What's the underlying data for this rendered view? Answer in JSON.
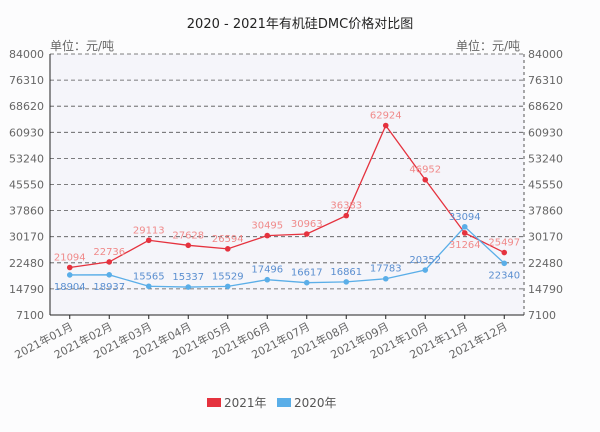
{
  "chart_data": {
    "type": "line",
    "title": "2020 - 2021年有机硅DMC价格对比图",
    "ylabel_left": "单位：元/吨",
    "ylabel_right": "单位：元/吨",
    "categories": [
      "2021年01月",
      "2021年02月",
      "2021年03月",
      "2021年04月",
      "2021年05月",
      "2021年06月",
      "2021年07月",
      "2021年08月",
      "2021年09月",
      "2021年10月",
      "2021年11月",
      "2021年12月"
    ],
    "yticks": [
      84000,
      76310,
      68620,
      60930,
      53240,
      45550,
      37860,
      30170,
      22480,
      14790,
      7100
    ],
    "ylim": [
      7100,
      84000
    ],
    "grid": true,
    "legend_position": "bottom",
    "series": [
      {
        "name": "2021年",
        "color": "#e5323e",
        "label_color": "#f08a8a",
        "values": [
          21094,
          22736,
          29113,
          27628,
          26594,
          30495,
          30963,
          36383,
          62924,
          46952,
          31264,
          25497
        ]
      },
      {
        "name": "2020年",
        "color": "#5aaee8",
        "label_color": "#5b8fd0",
        "values": [
          18904,
          18937,
          15565,
          15337,
          15529,
          17496,
          16617,
          16861,
          17783,
          20352,
          33094,
          22340
        ]
      }
    ]
  }
}
